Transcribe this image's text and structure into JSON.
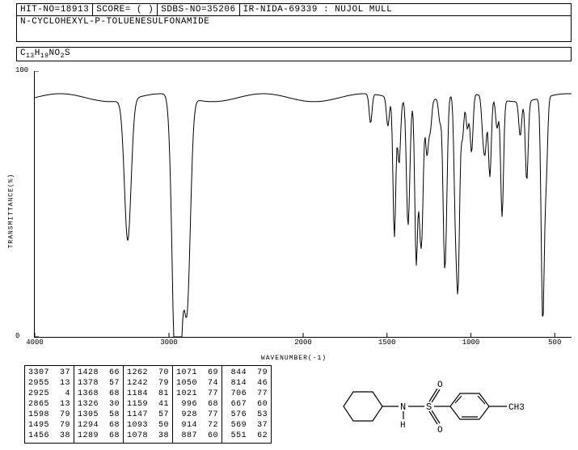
{
  "header": {
    "hit_no": "HIT-NO=18913",
    "score": "SCORE=  (  )",
    "sdbs_no": "SDBS-NO=35206",
    "spectrum_id": "IR-NIDA-69339 : NUJOL MULL"
  },
  "compound_name": "N-CYCLOHEXYL-P-TOLUENESULFONAMIDE",
  "formula_parts": [
    "C",
    "13",
    "H",
    "19",
    "NO",
    "2",
    "S"
  ],
  "chart": {
    "type": "line",
    "ylabel": "TRANSMITTANCE(%)",
    "xlabel": "WAVENUMBER(-1)",
    "xlim": [
      4000,
      400
    ],
    "ylim": [
      0,
      100
    ],
    "yticks": [
      0,
      100
    ],
    "xticks": [
      4000,
      3000,
      2000,
      1500,
      1000,
      500
    ],
    "line_color": "#000000",
    "background_color": "#ffffff",
    "line_width": 1,
    "baseline_transmittance": 90,
    "peaks": [
      [
        3307,
        37
      ],
      [
        2955,
        13
      ],
      [
        2925,
        4
      ],
      [
        2865,
        13
      ],
      [
        1598,
        79
      ],
      [
        1495,
        79
      ],
      [
        1456,
        38
      ],
      [
        1428,
        66
      ],
      [
        1378,
        57
      ],
      [
        1368,
        68
      ],
      [
        1326,
        30
      ],
      [
        1305,
        58
      ],
      [
        1294,
        68
      ],
      [
        1289,
        68
      ],
      [
        1262,
        70
      ],
      [
        1242,
        79
      ],
      [
        1184,
        81
      ],
      [
        1159,
        41
      ],
      [
        1147,
        57
      ],
      [
        1093,
        50
      ],
      [
        1078,
        38
      ],
      [
        1071,
        69
      ],
      [
        1050,
        74
      ],
      [
        1021,
        77
      ],
      [
        996,
        68
      ],
      [
        928,
        77
      ],
      [
        914,
        72
      ],
      [
        887,
        60
      ],
      [
        844,
        79
      ],
      [
        814,
        46
      ],
      [
        706,
        77
      ],
      [
        667,
        60
      ],
      [
        576,
        53
      ],
      [
        569,
        37
      ],
      [
        551,
        62
      ]
    ]
  },
  "peak_table": {
    "columns": [
      [
        [
          3307,
          37
        ],
        [
          2955,
          13
        ],
        [
          2925,
          4
        ],
        [
          2865,
          13
        ],
        [
          1598,
          79
        ],
        [
          1495,
          79
        ],
        [
          1456,
          38
        ]
      ],
      [
        [
          1428,
          66
        ],
        [
          1378,
          57
        ],
        [
          1368,
          68
        ],
        [
          1326,
          30
        ],
        [
          1305,
          58
        ],
        [
          1294,
          68
        ],
        [
          1289,
          68
        ]
      ],
      [
        [
          1262,
          70
        ],
        [
          1242,
          79
        ],
        [
          1184,
          81
        ],
        [
          1159,
          41
        ],
        [
          1147,
          57
        ],
        [
          1093,
          50
        ],
        [
          1078,
          38
        ]
      ],
      [
        [
          1071,
          69
        ],
        [
          1050,
          74
        ],
        [
          1021,
          77
        ],
        [
          996,
          68
        ],
        [
          928,
          77
        ],
        [
          914,
          72
        ],
        [
          887,
          60
        ]
      ],
      [
        [
          844,
          79
        ],
        [
          814,
          46
        ],
        [
          706,
          77
        ],
        [
          667,
          60
        ],
        [
          576,
          53
        ],
        [
          569,
          37
        ],
        [
          551,
          62
        ]
      ]
    ]
  },
  "structure_label": "CH3"
}
